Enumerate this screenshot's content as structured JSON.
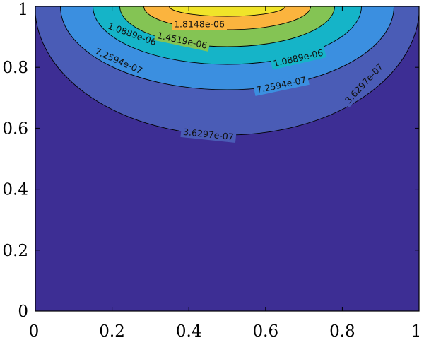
{
  "chart_data": {
    "type": "contour",
    "xlim": [
      0,
      1
    ],
    "ylim": [
      0,
      1
    ],
    "xticks": [
      0,
      0.2,
      0.4,
      0.6,
      0.8,
      1
    ],
    "yticks": [
      0,
      0.2,
      0.4,
      0.6,
      0.8,
      1
    ],
    "xtick_labels": [
      "0",
      "0.2",
      "0.4",
      "0.6",
      "0.8",
      "1"
    ],
    "ytick_labels": [
      "0",
      "0.2",
      "0.4",
      "0.6",
      "0.8",
      "1"
    ],
    "title": "",
    "xlabel": "",
    "ylabel": "",
    "grid": false,
    "colormap": "parula",
    "field_shape": "semicircular bands centered at x = 0.5 along the top edge y = 1",
    "levels": [
      {
        "value": 0,
        "label": "",
        "fill": "#3d2e94"
      },
      {
        "value": 3.6297e-07,
        "label": "3.6297e-07",
        "fill": "#4a5cb6"
      },
      {
        "value": 7.2594e-07,
        "label": "7.2594e-07",
        "fill": "#3b8fe0"
      },
      {
        "value": 1.0889e-06,
        "label": "1.0889e-06",
        "fill": "#15b4c8"
      },
      {
        "value": 1.4519e-06,
        "label": "1.4519e-06",
        "fill": "#84c454"
      },
      {
        "value": 1.8148e-06,
        "label": "1.8148e-06",
        "fill": "#fbb43e"
      },
      {
        "value": 2.1778e-06,
        "label": "",
        "fill": "#f0e42a"
      }
    ],
    "line_color": "#000000"
  }
}
